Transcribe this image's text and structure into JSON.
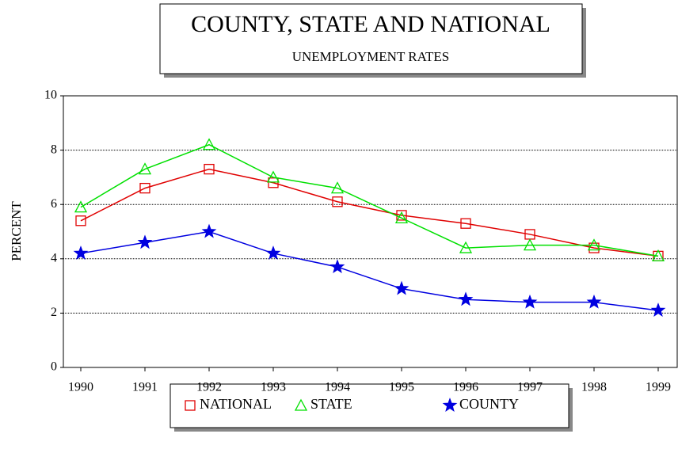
{
  "chart_data": {
    "type": "line",
    "title": "COUNTY, STATE AND NATIONAL",
    "subtitle": "UNEMPLOYMENT RATES",
    "y_label": "PERCENT",
    "categories": [
      "1990",
      "1991",
      "1992",
      "1993",
      "1994",
      "1995",
      "1996",
      "1997",
      "1998",
      "1999"
    ],
    "series": [
      {
        "name": "NATIONAL",
        "color": "#e00000",
        "marker": "square",
        "values": [
          5.4,
          6.6,
          7.3,
          6.8,
          6.1,
          5.6,
          5.3,
          4.9,
          4.4,
          4.1
        ]
      },
      {
        "name": "STATE",
        "color": "#00e000",
        "marker": "triangle",
        "values": [
          5.9,
          7.3,
          8.2,
          7.0,
          6.6,
          5.5,
          4.4,
          4.5,
          4.5,
          4.1
        ]
      },
      {
        "name": "COUNTY",
        "color": "#0000e0",
        "marker": "star",
        "values": [
          4.2,
          4.6,
          5.0,
          4.2,
          3.7,
          2.9,
          2.5,
          2.4,
          2.4,
          2.1
        ]
      }
    ],
    "ylim": [
      0,
      10
    ],
    "yticks": [
      0,
      2,
      4,
      6,
      8,
      10
    ],
    "grid": true
  }
}
